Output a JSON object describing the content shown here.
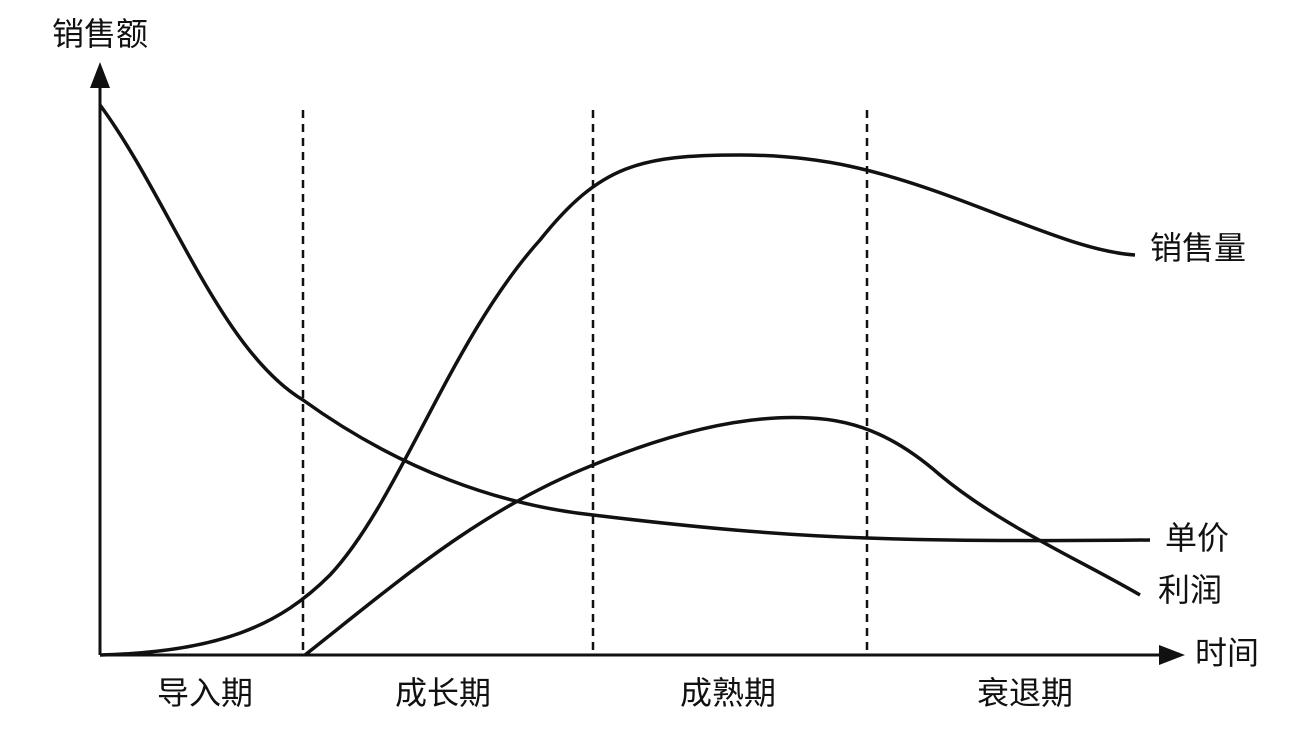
{
  "axes": {
    "y_label": "销售额",
    "x_label": "时间"
  },
  "stages": [
    "导入期",
    "成长期",
    "成熟期",
    "衰退期"
  ],
  "curves": {
    "sales_volume": "销售量",
    "unit_price": "单价",
    "profit": "利润"
  }
}
